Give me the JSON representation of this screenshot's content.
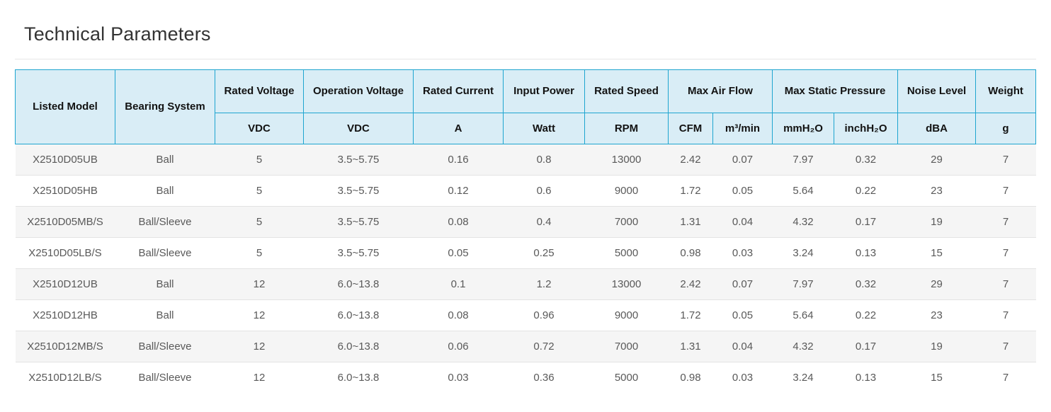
{
  "title": "Technical Parameters",
  "colors": {
    "border": "#1ea5d0",
    "header_bg": "#d9edf6",
    "header_text": "#121212",
    "body_text": "#595959",
    "title_text": "#333333",
    "zebra_row_bg": "#f5f5f5",
    "row_divider": "#e3e3e3",
    "title_rule": "#e8e8e8"
  },
  "table": {
    "header_groups": [
      {
        "label": "Listed Model",
        "colspan": 1,
        "rowspan": 2
      },
      {
        "label": "Bearing System",
        "colspan": 1,
        "rowspan": 2
      },
      {
        "label": "Rated Voltage",
        "colspan": 1,
        "rowspan": 1
      },
      {
        "label": "Operation Voltage",
        "colspan": 1,
        "rowspan": 1
      },
      {
        "label": "Rated Current",
        "colspan": 1,
        "rowspan": 1
      },
      {
        "label": "Input Power",
        "colspan": 1,
        "rowspan": 1
      },
      {
        "label": "Rated Speed",
        "colspan": 1,
        "rowspan": 1
      },
      {
        "label": "Max Air Flow",
        "colspan": 2,
        "rowspan": 1
      },
      {
        "label": "Max Static Pressure",
        "colspan": 2,
        "rowspan": 1
      },
      {
        "label": "Noise Level",
        "colspan": 1,
        "rowspan": 1
      },
      {
        "label": "Weight",
        "colspan": 1,
        "rowspan": 1
      }
    ],
    "unit_row": [
      "VDC",
      "VDC",
      "A",
      "Watt",
      "RPM",
      "CFM",
      "m³/min",
      "mmH₂O",
      "inchH₂O",
      "dBA",
      "g"
    ],
    "rows": [
      [
        "X2510D05UB",
        "Ball",
        "5",
        "3.5~5.75",
        "0.16",
        "0.8",
        "13000",
        "2.42",
        "0.07",
        "7.97",
        "0.32",
        "29",
        "7"
      ],
      [
        "X2510D05HB",
        "Ball",
        "5",
        "3.5~5.75",
        "0.12",
        "0.6",
        "9000",
        "1.72",
        "0.05",
        "5.64",
        "0.22",
        "23",
        "7"
      ],
      [
        "X2510D05MB/S",
        "Ball/Sleeve",
        "5",
        "3.5~5.75",
        "0.08",
        "0.4",
        "7000",
        "1.31",
        "0.04",
        "4.32",
        "0.17",
        "19",
        "7"
      ],
      [
        "X2510D05LB/S",
        "Ball/Sleeve",
        "5",
        "3.5~5.75",
        "0.05",
        "0.25",
        "5000",
        "0.98",
        "0.03",
        "3.24",
        "0.13",
        "15",
        "7"
      ],
      [
        "X2510D12UB",
        "Ball",
        "12",
        "6.0~13.8",
        "0.1",
        "1.2",
        "13000",
        "2.42",
        "0.07",
        "7.97",
        "0.32",
        "29",
        "7"
      ],
      [
        "X2510D12HB",
        "Ball",
        "12",
        "6.0~13.8",
        "0.08",
        "0.96",
        "9000",
        "1.72",
        "0.05",
        "5.64",
        "0.22",
        "23",
        "7"
      ],
      [
        "X2510D12MB/S",
        "Ball/Sleeve",
        "12",
        "6.0~13.8",
        "0.06",
        "0.72",
        "7000",
        "1.31",
        "0.04",
        "4.32",
        "0.17",
        "19",
        "7"
      ],
      [
        "X2510D12LB/S",
        "Ball/Sleeve",
        "12",
        "6.0~13.8",
        "0.03",
        "0.36",
        "5000",
        "0.98",
        "0.03",
        "3.24",
        "0.13",
        "15",
        "7"
      ]
    ]
  }
}
